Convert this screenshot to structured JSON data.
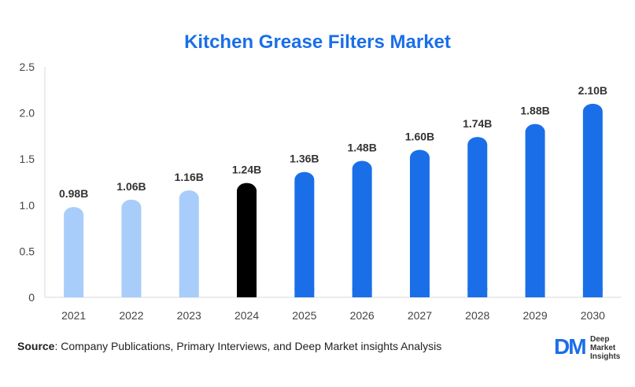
{
  "chart_data": {
    "type": "bar",
    "title": "Kitchen Grease Filters Market",
    "categories": [
      "2021",
      "2022",
      "2023",
      "2024",
      "2025",
      "2026",
      "2027",
      "2028",
      "2029",
      "2030"
    ],
    "values": [
      0.98,
      1.06,
      1.16,
      1.24,
      1.36,
      1.48,
      1.6,
      1.74,
      1.88,
      2.1
    ],
    "value_labels": [
      "0.98B",
      "1.06B",
      "1.16B",
      "1.24B",
      "1.36B",
      "1.48B",
      "1.60B",
      "1.74B",
      "1.88B",
      "2.10B"
    ],
    "ylim": [
      0,
      2.5
    ],
    "yticks": [
      "0",
      "0.5",
      "1.0",
      "1.5",
      "2.0",
      "2.5"
    ],
    "ytick_values": [
      0,
      0.5,
      1.0,
      1.5,
      2.0,
      2.5
    ],
    "grid": false,
    "bar_colors": [
      "#a8cdfa",
      "#a8cdfa",
      "#a8cdfa",
      "#000000",
      "#1a6fe8",
      "#1a6fe8",
      "#1a6fe8",
      "#1a6fe8",
      "#1a6fe8",
      "#1a6fe8"
    ]
  },
  "source": {
    "label": "Source",
    "text": ": Company Publications, Primary Interviews, and Deep Market insights Analysis"
  },
  "logo": {
    "mark": "DM",
    "line1": "Deep",
    "line2": "Market",
    "line3": "Insights"
  }
}
